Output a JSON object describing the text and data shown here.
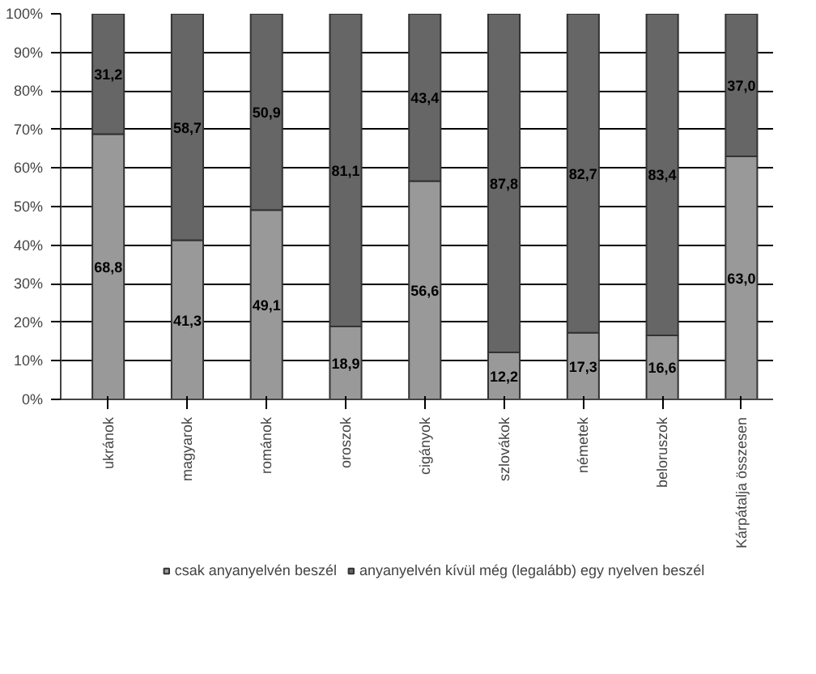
{
  "chart_data": {
    "type": "bar",
    "stacked": true,
    "categories": [
      "ukránok",
      "magyarok",
      "románok",
      "oroszok",
      "cigányok",
      "szlovákok",
      "németek",
      "beloruszok",
      "Kárpátalja összesen"
    ],
    "series": [
      {
        "name": "csak anyanyelvén beszél",
        "color": "#999999",
        "values": [
          68.8,
          41.3,
          49.1,
          18.9,
          56.6,
          12.2,
          17.3,
          16.6,
          63.0
        ],
        "value_labels": [
          "68,8",
          "41,3",
          "49,1",
          "18,9",
          "56,6",
          "12,2",
          "17,3",
          "16,6",
          "63,0"
        ]
      },
      {
        "name": "anyanyelvén kívül még (legalább) egy nyelven beszél",
        "color": "#666666",
        "values": [
          31.2,
          58.7,
          50.9,
          81.1,
          43.4,
          87.8,
          82.7,
          83.4,
          37.0
        ],
        "value_labels": [
          "31,2",
          "58,7",
          "50,9",
          "81,1",
          "43,4",
          "87,8",
          "82,7",
          "83,4",
          "37,0"
        ]
      }
    ],
    "ylim": [
      0,
      100
    ],
    "yticks": [
      {
        "value": 0,
        "label": "0%"
      },
      {
        "value": 10,
        "label": "10%"
      },
      {
        "value": 20,
        "label": "20%"
      },
      {
        "value": 30,
        "label": "30%"
      },
      {
        "value": 40,
        "label": "40%"
      },
      {
        "value": 50,
        "label": "50%"
      },
      {
        "value": 60,
        "label": "60%"
      },
      {
        "value": 70,
        "label": "70%"
      },
      {
        "value": 80,
        "label": "80%"
      },
      {
        "value": 90,
        "label": "90%"
      },
      {
        "value": 100,
        "label": "100%"
      }
    ],
    "grid": "y",
    "legend": "bottom"
  }
}
